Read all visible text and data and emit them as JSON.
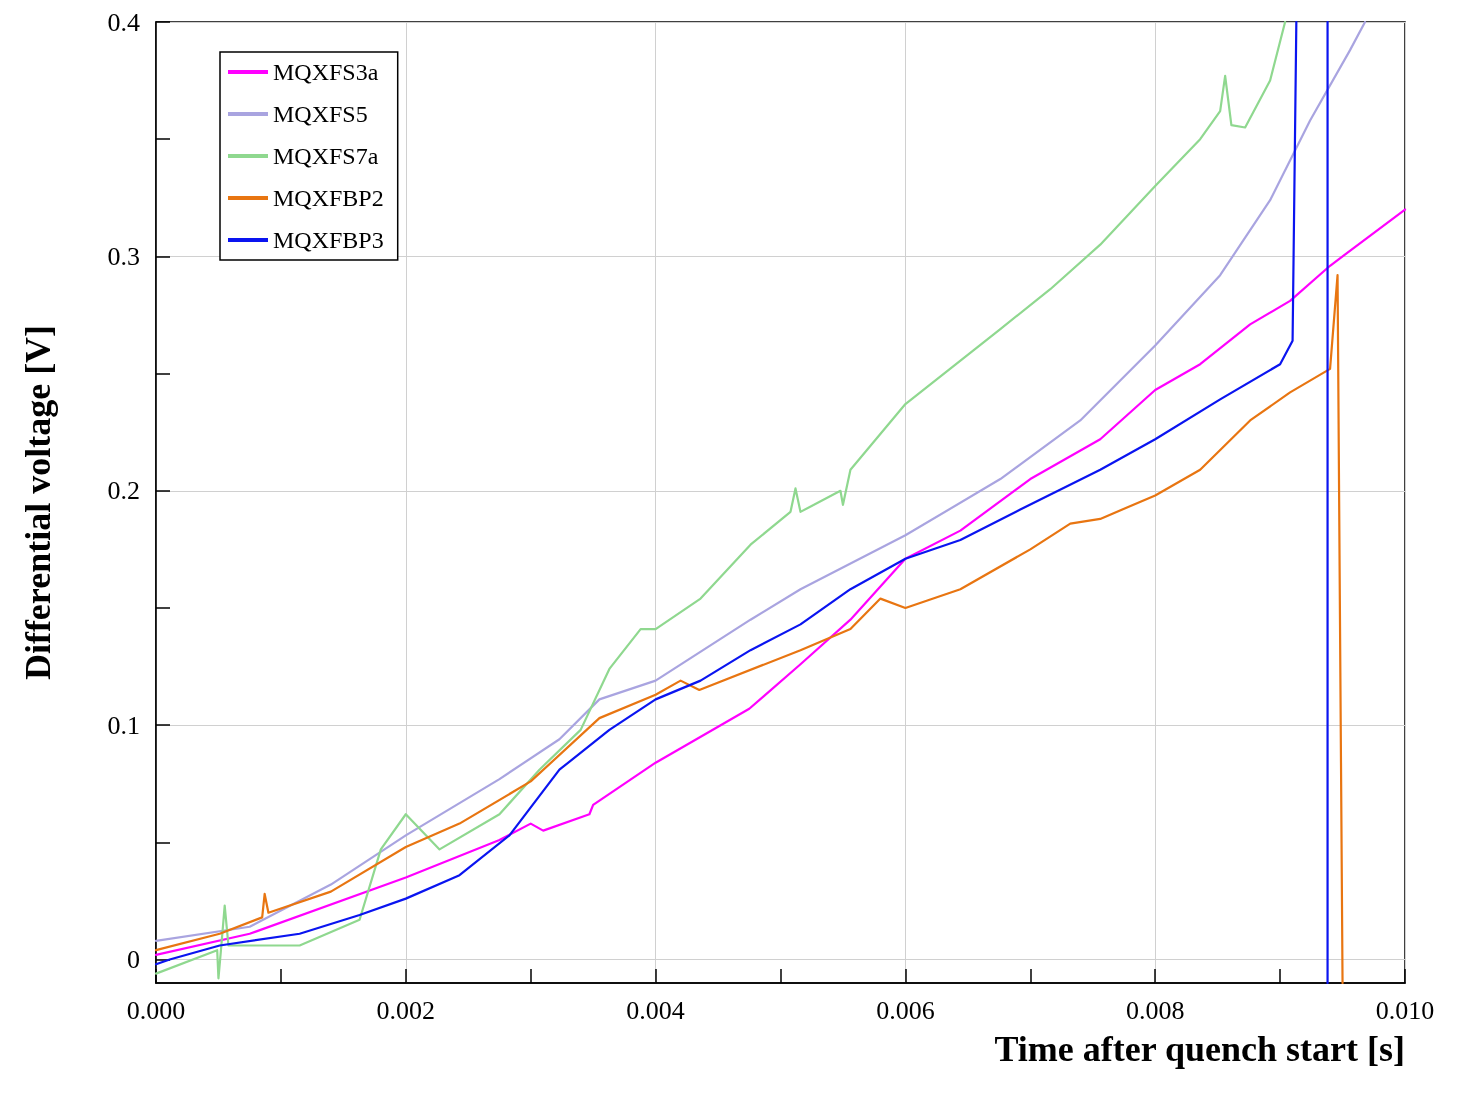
{
  "chart_data": {
    "type": "line",
    "xlabel": "Time after quench start [s]",
    "ylabel": "Differential voltage [V]",
    "xlim": [
      0,
      0.01
    ],
    "ylim": [
      -0.01,
      0.4
    ],
    "xticks": [
      {
        "value": 0,
        "label": "0.000"
      },
      {
        "value": 0.001,
        "label": null
      },
      {
        "value": 0.002,
        "label": "0.002"
      },
      {
        "value": 0.003,
        "label": null
      },
      {
        "value": 0.004,
        "label": "0.004"
      },
      {
        "value": 0.005,
        "label": null
      },
      {
        "value": 0.006,
        "label": "0.006"
      },
      {
        "value": 0.007,
        "label": null
      },
      {
        "value": 0.008,
        "label": "0.008"
      },
      {
        "value": 0.009,
        "label": null
      },
      {
        "value": 0.01,
        "label": "0.010"
      }
    ],
    "yticks": [
      0,
      {
        "value": 0.05,
        "label": null
      },
      0.1,
      {
        "value": 0.15,
        "label": null
      },
      0.2,
      {
        "value": 0.25,
        "label": null
      },
      0.3,
      {
        "value": 0.35,
        "label": null
      },
      0.4
    ],
    "grid": true,
    "legend": "top left",
    "marker": "none",
    "line_style": "solid",
    "series": [
      {
        "name": "MQXFS3a",
        "color": "#ff00ff",
        "x": [
          0,
          0.00075,
          0.002,
          0.00275,
          0.003,
          0.0031,
          0.00347,
          0.0035,
          0.004,
          0.00475,
          0.00516,
          0.00556,
          0.006,
          0.00644,
          0.007,
          0.00756,
          0.008,
          0.00836,
          0.00876,
          0.00908,
          0.0094,
          0.01
        ],
        "values": [
          0.002,
          0.011,
          0.035,
          0.051,
          0.058,
          0.055,
          0.062,
          0.066,
          0.084,
          0.107,
          0.126,
          0.145,
          0.171,
          0.183,
          0.205,
          0.222,
          0.243,
          0.254,
          0.271,
          0.281,
          0.296,
          0.32
        ]
      },
      {
        "name": "MQXFS5",
        "color": "#a9a4e0",
        "x": [
          0,
          0.00075,
          0.0014,
          0.002,
          0.00275,
          0.00323,
          0.00355,
          0.004,
          0.00476,
          0.00516,
          0.006,
          0.00676,
          0.0074,
          0.008,
          0.00852,
          0.00892,
          0.00924,
          0.00956,
          0.00968
        ],
        "values": [
          0.008,
          0.014,
          0.032,
          0.053,
          0.077,
          0.094,
          0.111,
          0.119,
          0.145,
          0.158,
          0.181,
          0.205,
          0.23,
          0.262,
          0.292,
          0.324,
          0.358,
          0.388,
          0.4
        ]
      },
      {
        "name": "MQXFS7a",
        "color": "#8fd88f",
        "x": [
          0,
          0.00049,
          0.0005,
          0.00052,
          0.00055,
          0.00058,
          0.00115,
          0.00163,
          0.0018,
          0.002,
          0.00227,
          0.00275,
          0.00307,
          0.0034,
          0.00363,
          0.00388,
          0.004,
          0.00436,
          0.00476,
          0.00508,
          0.00512,
          0.00516,
          0.00548,
          0.0055,
          0.00556,
          0.006,
          0.00676,
          0.00716,
          0.00756,
          0.008,
          0.00836,
          0.00852,
          0.00856,
          0.00861,
          0.00872,
          0.00892,
          0.00904
        ],
        "values": [
          -0.006,
          0.004,
          -0.008,
          0.004,
          0.023,
          0.006,
          0.006,
          0.017,
          0.047,
          0.062,
          0.047,
          0.062,
          0.081,
          0.098,
          0.124,
          0.141,
          0.141,
          0.154,
          0.177,
          0.191,
          0.201,
          0.191,
          0.2,
          0.194,
          0.209,
          0.237,
          0.269,
          0.286,
          0.305,
          0.33,
          0.35,
          0.362,
          0.377,
          0.356,
          0.355,
          0.375,
          0.4
        ]
      },
      {
        "name": "MQXFBP2",
        "color": "#e87511",
        "x": [
          0,
          0.00051,
          0.00085,
          0.00087,
          0.0009,
          0.0014,
          0.002,
          0.00243,
          0.003,
          0.00355,
          0.004,
          0.0042,
          0.00435,
          0.00516,
          0.00556,
          0.0058,
          0.006,
          0.00644,
          0.007,
          0.00732,
          0.00756,
          0.008,
          0.00836,
          0.00876,
          0.00908,
          0.0094,
          0.00946,
          0.0095
        ],
        "values": [
          0.004,
          0.011,
          0.018,
          0.028,
          0.02,
          0.029,
          0.048,
          0.058,
          0.076,
          0.103,
          0.113,
          0.119,
          0.115,
          0.132,
          0.141,
          0.154,
          0.15,
          0.158,
          0.175,
          0.186,
          0.188,
          0.198,
          0.209,
          0.23,
          0.242,
          0.252,
          0.292,
          -0.01
        ]
      },
      {
        "name": "MQXFBP3",
        "color": "#0a14f0",
        "x": [
          0,
          0.00011,
          0.00051,
          0.00115,
          0.00163,
          0.002,
          0.00243,
          0.00283,
          0.00323,
          0.00363,
          0.004,
          0.00436,
          0.00476,
          0.00516,
          0.00556,
          0.006,
          0.00644,
          0.00692,
          0.00756,
          0.008,
          0.00852,
          0.009,
          0.0091,
          0.00913,
          0.00925,
          0.00938,
          0.00938
        ],
        "values": [
          -0.002,
          0,
          0.006,
          0.011,
          0.019,
          0.026,
          0.036,
          0.053,
          0.081,
          0.098,
          0.111,
          0.119,
          0.132,
          0.143,
          0.158,
          0.171,
          0.179,
          0.192,
          0.209,
          0.222,
          0.239,
          0.254,
          0.264,
          0.4,
          null,
          0.4,
          -0.01
        ]
      }
    ]
  }
}
